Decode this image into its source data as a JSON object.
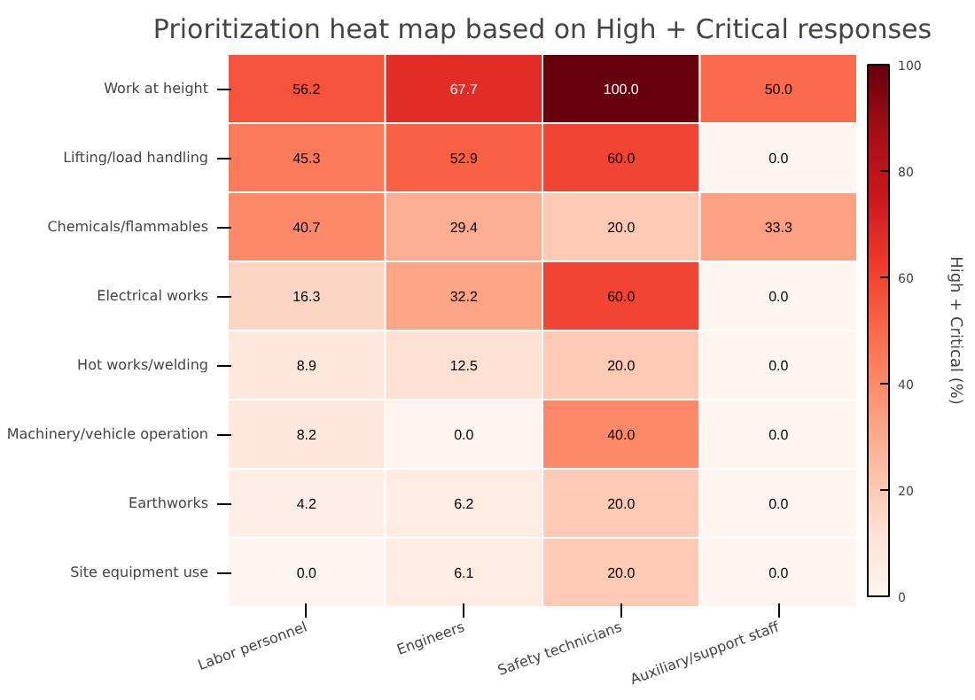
{
  "chart_data": {
    "type": "heatmap",
    "title": "Prioritization heat map based on High + Critical responses",
    "clabel": "High + Critical (%)",
    "categories": [
      "Labor personnel",
      "Engineers",
      "Safety technicians",
      "Auxiliary/support staff"
    ],
    "y_categories": [
      "Work at height",
      "Lifting/load handling",
      "Chemicals/flammables",
      "Electrical works",
      "Hot works/welding",
      "Machinery/vehicle operation",
      "Earthworks",
      "Site equipment use"
    ],
    "cells": [
      [
        56.2,
        67.7,
        100,
        50
      ],
      [
        45.3,
        52.9,
        60,
        0
      ],
      [
        40.7,
        29.4,
        20,
        33.3
      ],
      [
        16.3,
        32.2,
        60,
        0
      ],
      [
        8.9,
        12.5,
        20,
        0
      ],
      [
        8.2,
        0,
        40,
        0
      ],
      [
        4.2,
        6.2,
        20,
        0
      ],
      [
        0,
        6.1,
        20,
        0
      ]
    ],
    "cell_labels": [
      [
        "56.2",
        "67.7",
        "100.0",
        "50.0"
      ],
      [
        "45.3",
        "52.9",
        "60.0",
        "0.0"
      ],
      [
        "40.7",
        "29.4",
        "20.0",
        "33.3"
      ],
      [
        "16.3",
        "32.2",
        "60.0",
        "0.0"
      ],
      [
        "8.9",
        "12.5",
        "20.0",
        "0.0"
      ],
      [
        "8.2",
        "0.0",
        "40.0",
        "0.0"
      ],
      [
        "4.2",
        "6.2",
        "20.0",
        "0.0"
      ],
      [
        "0.0",
        "6.1",
        "20.0",
        "0.0"
      ]
    ],
    "clim": [
      0,
      100
    ],
    "cticks": [
      0,
      20,
      40,
      60,
      80,
      100
    ]
  }
}
